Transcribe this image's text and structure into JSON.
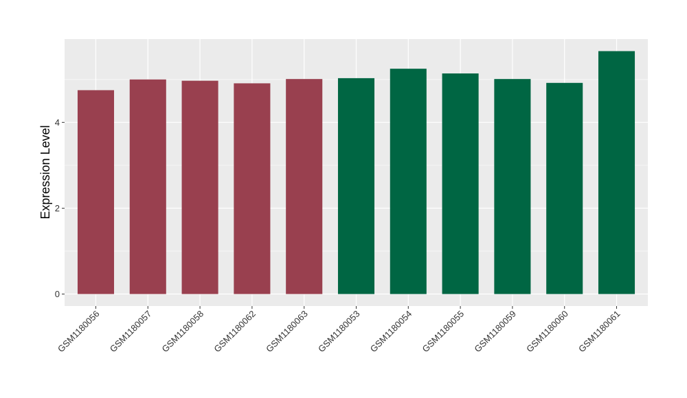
{
  "chart_data": {
    "type": "bar",
    "title": "",
    "xlabel": "",
    "ylabel": "Expression Level",
    "categories": [
      "GSM1180056",
      "GSM1180057",
      "GSM1180058",
      "GSM1180062",
      "GSM1180063",
      "GSM1180053",
      "GSM1180054",
      "GSM1180055",
      "GSM1180059",
      "GSM1180060",
      "GSM1180061"
    ],
    "values": [
      4.75,
      5.0,
      4.97,
      4.91,
      5.01,
      5.03,
      5.25,
      5.14,
      5.01,
      4.92,
      5.66
    ],
    "bar_colors": [
      "#99404f",
      "#99404f",
      "#99404f",
      "#99404f",
      "#99404f",
      "#006643",
      "#006643",
      "#006643",
      "#006643",
      "#006643",
      "#006643"
    ],
    "ylim": [
      -0.28,
      5.94
    ],
    "y_ticks": [
      0,
      2,
      4
    ],
    "grid": true,
    "legend": "none",
    "colors": {
      "panel_background": "#ebebeb",
      "grid": "#ffffff"
    }
  }
}
